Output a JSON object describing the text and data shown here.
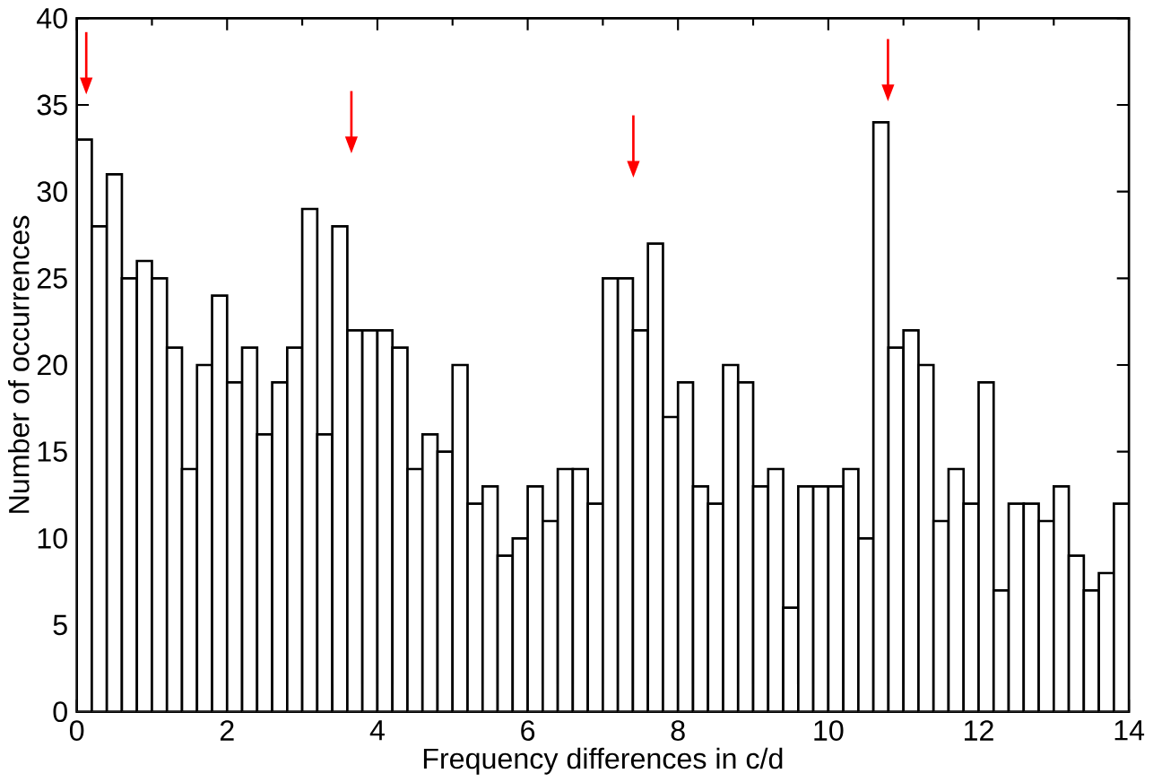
{
  "chart_data": {
    "type": "histogram",
    "xlabel": "Frequency differences in c/d",
    "ylabel": "Number of occurrences",
    "bins": [
      0,
      0.2,
      0.4,
      0.6,
      0.8,
      1,
      1.2,
      1.4,
      1.6,
      1.8,
      2,
      2.2,
      2.4,
      2.6,
      2.8,
      3,
      3.2,
      3.4,
      3.6,
      3.8,
      4,
      4.2,
      4.4,
      4.6,
      4.8,
      5,
      5.2,
      5.4,
      5.6,
      5.8,
      6,
      6.2,
      6.4,
      6.6,
      6.8,
      7,
      7.2,
      7.4,
      7.6,
      7.8,
      8,
      8.2,
      8.4,
      8.6,
      8.8,
      9,
      9.2,
      9.4,
      9.6,
      9.8,
      10,
      10.2,
      10.4,
      10.6,
      10.8,
      11,
      11.2,
      11.4,
      11.6,
      11.8,
      12,
      12.2,
      12.4,
      12.6,
      12.8,
      13,
      13.2,
      13.4,
      13.6,
      13.8,
      14
    ],
    "values": [
      33,
      28,
      31,
      25,
      26,
      25,
      21,
      14,
      20,
      24,
      19,
      21,
      16,
      19,
      21,
      29,
      16,
      28,
      22,
      22,
      22,
      21,
      14,
      16,
      15,
      20,
      12,
      13,
      9,
      10,
      13,
      11,
      14,
      14,
      12,
      25,
      25,
      22,
      27,
      17,
      19,
      13,
      12,
      20,
      19,
      13,
      14,
      6,
      13,
      13,
      13,
      14,
      10,
      34,
      21,
      22,
      20,
      11,
      14,
      12,
      19,
      7,
      12,
      12,
      11,
      13,
      9,
      7,
      8,
      12
    ],
    "color": "#000000",
    "xlim": [
      0,
      14
    ],
    "ylim": [
      0,
      40
    ],
    "xticks": [
      0,
      2,
      4,
      6,
      8,
      10,
      12,
      14
    ],
    "yticks": [
      0,
      5,
      10,
      15,
      20,
      25,
      30,
      35,
      40
    ],
    "grid": false
  }
}
